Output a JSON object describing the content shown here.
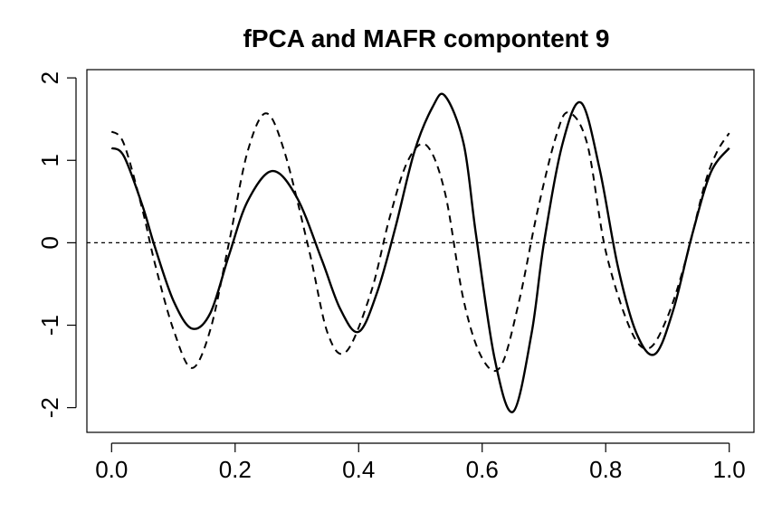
{
  "chart_data": {
    "type": "line",
    "title": "fPCA and MAFR compontent 9",
    "xlabel": "",
    "ylabel": "",
    "xlim": [
      -0.04,
      1.04
    ],
    "ylim": [
      -2.3,
      2.1
    ],
    "x_ticks": [
      0.0,
      0.2,
      0.4,
      0.6,
      0.8,
      1.0
    ],
    "x_tick_labels": [
      "0.0",
      "0.2",
      "0.4",
      "0.6",
      "0.8",
      "1.0"
    ],
    "y_ticks": [
      -2,
      -1,
      0,
      1,
      2
    ],
    "y_tick_labels": [
      "-2",
      "-1",
      "0",
      "1",
      "2"
    ],
    "reference_line": {
      "y": 0,
      "style": "dashed"
    },
    "grid": false,
    "legend": "none",
    "series": [
      {
        "style": "solid",
        "color": "#000000",
        "points": [
          [
            0.0,
            1.15
          ],
          [
            0.02,
            1.05
          ],
          [
            0.05,
            0.45
          ],
          [
            0.07,
            -0.05
          ],
          [
            0.1,
            -0.7
          ],
          [
            0.13,
            -1.04
          ],
          [
            0.16,
            -0.85
          ],
          [
            0.19,
            -0.15
          ],
          [
            0.22,
            0.5
          ],
          [
            0.26,
            0.87
          ],
          [
            0.3,
            0.55
          ],
          [
            0.34,
            -0.2
          ],
          [
            0.37,
            -0.8
          ],
          [
            0.4,
            -1.08
          ],
          [
            0.43,
            -0.6
          ],
          [
            0.46,
            0.2
          ],
          [
            0.49,
            1.1
          ],
          [
            0.52,
            1.65
          ],
          [
            0.54,
            1.78
          ],
          [
            0.57,
            1.2
          ],
          [
            0.59,
            0.1
          ],
          [
            0.62,
            -1.4
          ],
          [
            0.65,
            -2.05
          ],
          [
            0.68,
            -1.1
          ],
          [
            0.7,
            0.0
          ],
          [
            0.73,
            1.2
          ],
          [
            0.76,
            1.7
          ],
          [
            0.79,
            0.9
          ],
          [
            0.82,
            -0.3
          ],
          [
            0.85,
            -1.1
          ],
          [
            0.88,
            -1.35
          ],
          [
            0.91,
            -0.8
          ],
          [
            0.94,
            0.1
          ],
          [
            0.97,
            0.85
          ],
          [
            1.0,
            1.15
          ]
        ]
      },
      {
        "style": "dashed",
        "color": "#000000",
        "points": [
          [
            0.0,
            1.35
          ],
          [
            0.02,
            1.2
          ],
          [
            0.05,
            0.4
          ],
          [
            0.07,
            -0.25
          ],
          [
            0.1,
            -1.05
          ],
          [
            0.13,
            -1.52
          ],
          [
            0.16,
            -1.05
          ],
          [
            0.19,
            0.0
          ],
          [
            0.22,
            1.1
          ],
          [
            0.25,
            1.57
          ],
          [
            0.28,
            1.1
          ],
          [
            0.32,
            -0.1
          ],
          [
            0.35,
            -1.1
          ],
          [
            0.38,
            -1.32
          ],
          [
            0.42,
            -0.6
          ],
          [
            0.45,
            0.3
          ],
          [
            0.48,
            1.0
          ],
          [
            0.51,
            1.18
          ],
          [
            0.54,
            0.6
          ],
          [
            0.57,
            -0.7
          ],
          [
            0.6,
            -1.4
          ],
          [
            0.63,
            -1.5
          ],
          [
            0.66,
            -0.7
          ],
          [
            0.69,
            0.4
          ],
          [
            0.72,
            1.3
          ],
          [
            0.74,
            1.58
          ],
          [
            0.77,
            1.2
          ],
          [
            0.8,
            -0.1
          ],
          [
            0.84,
            -1.05
          ],
          [
            0.87,
            -1.28
          ],
          [
            0.9,
            -0.9
          ],
          [
            0.93,
            -0.2
          ],
          [
            0.96,
            0.7
          ],
          [
            0.98,
            1.1
          ],
          [
            1.0,
            1.33
          ]
        ]
      }
    ]
  }
}
